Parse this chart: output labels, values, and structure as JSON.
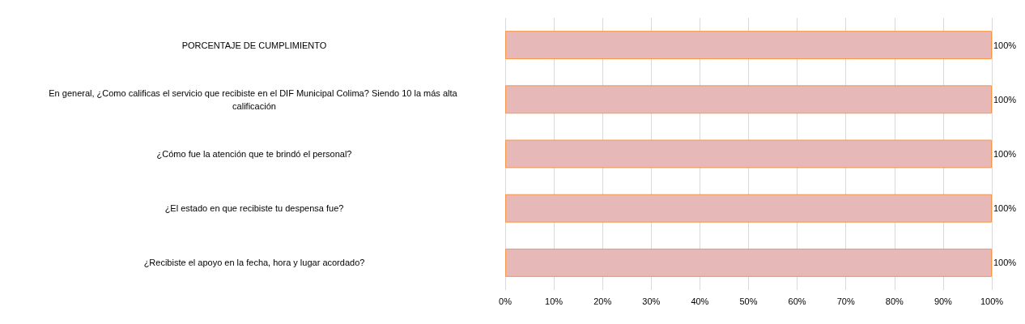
{
  "chart_data": {
    "type": "bar",
    "orientation": "horizontal",
    "categories": [
      "PORCENTAJE DE CUMPLIMIENTO",
      "En general, ¿Como calificas el servicio que recibiste en el DIF Municipal Colima? Siendo 10 la más alta calificación",
      "¿Cómo fue la atención que te brindó el personal?",
      "¿El estado en que recibiste tu despensa fue?",
      "¿Recibiste el apoyo en la fecha, hora y lugar acordado?"
    ],
    "values": [
      100,
      100,
      100,
      100,
      100
    ],
    "value_labels": [
      "100%",
      "100%",
      "100%",
      "100%",
      "100%"
    ],
    "color": "#e6b8b7",
    "xlim": [
      0,
      100
    ],
    "xticks": [
      {
        "value": 0,
        "label": "0%"
      },
      {
        "value": 10,
        "label": "10%"
      },
      {
        "value": 20,
        "label": "20%"
      },
      {
        "value": 30,
        "label": "30%"
      },
      {
        "value": 40,
        "label": "40%"
      },
      {
        "value": 50,
        "label": "50%"
      },
      {
        "value": 60,
        "label": "60%"
      },
      {
        "value": 70,
        "label": "70%"
      },
      {
        "value": 80,
        "label": "80%"
      },
      {
        "value": 90,
        "label": "90%"
      },
      {
        "value": 100,
        "label": "100%"
      }
    ],
    "grid": "x"
  }
}
